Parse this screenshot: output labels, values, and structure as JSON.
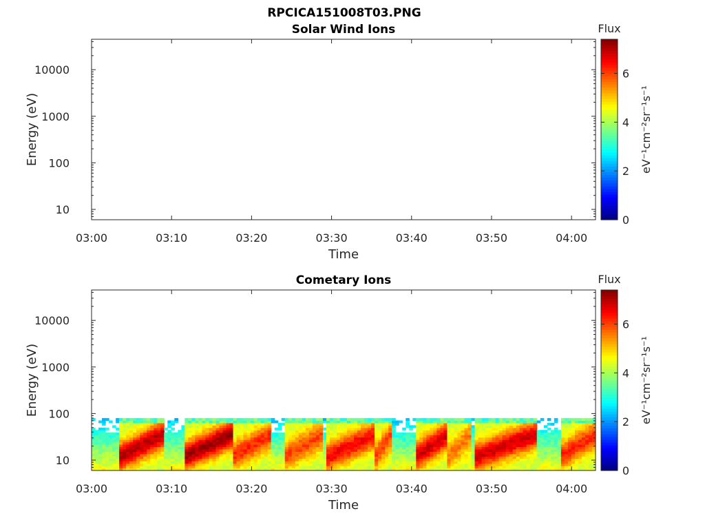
{
  "figure": {
    "filename": "RPCICA151008T03.PNG"
  },
  "chart_data": [
    {
      "type": "heatmap",
      "title": "Solar Wind Ions",
      "xlabel": "Time",
      "ylabel": "Energy (eV)",
      "x_ticks": [
        "03:00",
        "03:10",
        "03:20",
        "03:30",
        "03:40",
        "03:50",
        "04:00"
      ],
      "x_range_minutes": [
        0,
        63
      ],
      "y_scale": "log",
      "y_ticks": [
        10,
        100,
        1000,
        10000
      ],
      "y_range": [
        6,
        45000
      ],
      "colorbar": {
        "title": "Flux",
        "unit": "eV⁻¹cm⁻²sr⁻¹s⁻¹",
        "ticks": [
          0,
          2,
          4,
          6
        ],
        "range": [
          0,
          7.4
        ],
        "colormap": "jet"
      },
      "data": []
    },
    {
      "type": "heatmap",
      "title": "Cometary Ions",
      "xlabel": "Time",
      "ylabel": "Energy (eV)",
      "x_ticks": [
        "03:00",
        "03:10",
        "03:20",
        "03:30",
        "03:40",
        "03:50",
        "04:00"
      ],
      "x_range_minutes": [
        0,
        63
      ],
      "y_scale": "log",
      "y_ticks": [
        10,
        100,
        1000,
        10000
      ],
      "y_range": [
        6,
        45000
      ],
      "colorbar": {
        "title": "Flux",
        "unit": "eV⁻¹cm⁻²sr⁻¹s⁻¹",
        "ticks": [
          0,
          2,
          4,
          6
        ],
        "range": [
          0,
          7.4
        ],
        "colormap": "jet"
      },
      "energy_range_with_signal": [
        6,
        80
      ],
      "flux_peaks": [
        {
          "start_minute": 3.5,
          "end_minute": 9.0,
          "peak_flux": 7.0
        },
        {
          "start_minute": 11.5,
          "end_minute": 17.5,
          "peak_flux": 7.2
        },
        {
          "start_minute": 17.5,
          "end_minute": 22.5,
          "peak_flux": 6.2
        },
        {
          "start_minute": 24.0,
          "end_minute": 29.0,
          "peak_flux": 6.0
        },
        {
          "start_minute": 29.5,
          "end_minute": 35.5,
          "peak_flux": 6.5
        },
        {
          "start_minute": 35.5,
          "end_minute": 37.5,
          "peak_flux": 6.0
        },
        {
          "start_minute": 40.5,
          "end_minute": 44.5,
          "peak_flux": 6.8
        },
        {
          "start_minute": 44.5,
          "end_minute": 47.5,
          "peak_flux": 5.6
        },
        {
          "start_minute": 48.0,
          "end_minute": 55.5,
          "peak_flux": 6.8
        },
        {
          "start_minute": 58.5,
          "end_minute": 63.0,
          "peak_flux": 6.2
        }
      ],
      "background_flux": 4.6
    }
  ]
}
